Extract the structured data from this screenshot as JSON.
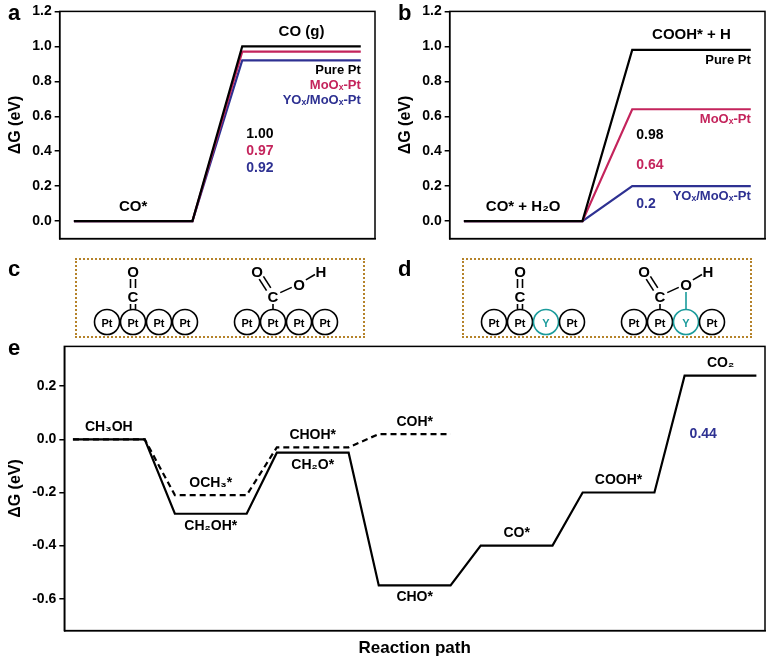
{
  "chart_data": [
    {
      "title": "a",
      "type": "line",
      "categories": [
        "CO*",
        "CO (g)"
      ],
      "y_label": "ΔG (eV)",
      "ylim": [
        -0.1,
        1.2
      ],
      "yticks": [
        {
          "value": 0,
          "label": "0.0"
        },
        0.2,
        0.4,
        0.6,
        0.8,
        {
          "value": 1,
          "label": "1.0"
        },
        1.2
      ],
      "tick_labels": "y",
      "grid": false,
      "data_labels": true,
      "series": [
        {
          "name": "Pure Pt",
          "color": "#000000",
          "values": [
            0,
            1.0
          ],
          "value_labels": [
            null,
            "1.00"
          ]
        },
        {
          "name": "MoOₓ-Pt",
          "color": "#c4245c",
          "values": [
            0,
            0.97
          ],
          "value_labels": [
            null,
            "0.97"
          ]
        },
        {
          "name": "YOₓ/MoOₓ-Pt",
          "color": "#2e3192",
          "values": [
            0,
            0.92
          ],
          "value_labels": [
            null,
            "0.92"
          ]
        }
      ]
    },
    {
      "title": "b",
      "type": "line",
      "categories": [
        "CO* + H₂O",
        "COOH* + H"
      ],
      "y_label": "ΔG (eV)",
      "ylim": [
        -0.1,
        1.2
      ],
      "yticks": [
        {
          "value": 0,
          "label": "0.0"
        },
        0.2,
        0.4,
        0.6,
        0.8,
        {
          "value": 1,
          "label": "1.0"
        },
        1.2
      ],
      "tick_labels": "y",
      "grid": false,
      "data_labels": true,
      "series": [
        {
          "name": "Pure Pt",
          "color": "#000000",
          "values": [
            0,
            0.98
          ],
          "value_labels": [
            null,
            "0.98"
          ]
        },
        {
          "name": "MoOₓ-Pt",
          "color": "#c4245c",
          "values": [
            0,
            0.64
          ],
          "value_labels": [
            null,
            "0.64"
          ]
        },
        {
          "name": "YOₓ/MoOₓ-Pt",
          "color": "#2e3192",
          "values": [
            0,
            0.2
          ],
          "value_labels": [
            null,
            "0.2"
          ]
        }
      ]
    },
    {
      "title": "e",
      "type": "line",
      "x_label": "Reaction path",
      "y_label": "ΔG (eV)",
      "ylim": [
        -0.72,
        0.35
      ],
      "yticks": [
        -0.6,
        -0.4,
        -0.2,
        {
          "value": 0,
          "label": "0.0"
        },
        0.2
      ],
      "tick_labels": "y",
      "grid": false,
      "series": [
        {
          "color": "#000000",
          "line_style": "solid",
          "labels": [
            "CH₃OH",
            "CH₂OH*",
            "CH₂O*",
            "CHO*",
            "CO*",
            "COOH*",
            "CO₂"
          ],
          "values": [
            0,
            -0.28,
            -0.05,
            -0.55,
            -0.4,
            -0.2,
            0.24
          ]
        },
        {
          "color": "#000000",
          "line_style": "dashed",
          "labels": [
            null,
            "OCH₃*",
            "CHOH*",
            "COH*",
            null,
            null,
            null
          ],
          "values": [
            0,
            -0.21,
            -0.03,
            0.02,
            null,
            null,
            null
          ]
        }
      ],
      "annotations": [
        {
          "text": "0.44",
          "color": "#2e3192"
        }
      ]
    }
  ],
  "diagrams": [
    {
      "title": "c",
      "structures": [
        {
          "adsorbate": [
            "O",
            "C"
          ],
          "surface": [
            "Pt",
            "Pt",
            "Pt",
            "Pt"
          ]
        },
        {
          "adsorbate": [
            "O",
            "C",
            "O",
            "H"
          ],
          "surface": [
            "Pt",
            "Pt",
            "Pt",
            "Pt"
          ]
        }
      ]
    },
    {
      "title": "d",
      "color": "#1a9b9b",
      "structures": [
        {
          "adsorbate": [
            "O",
            "C"
          ],
          "surface": [
            "Pt",
            "Pt",
            "Y",
            "Pt"
          ]
        },
        {
          "adsorbate": [
            "O",
            "C",
            "O",
            "H"
          ],
          "surface": [
            "Pt",
            "Pt",
            "Y",
            "Pt"
          ]
        }
      ]
    }
  ]
}
